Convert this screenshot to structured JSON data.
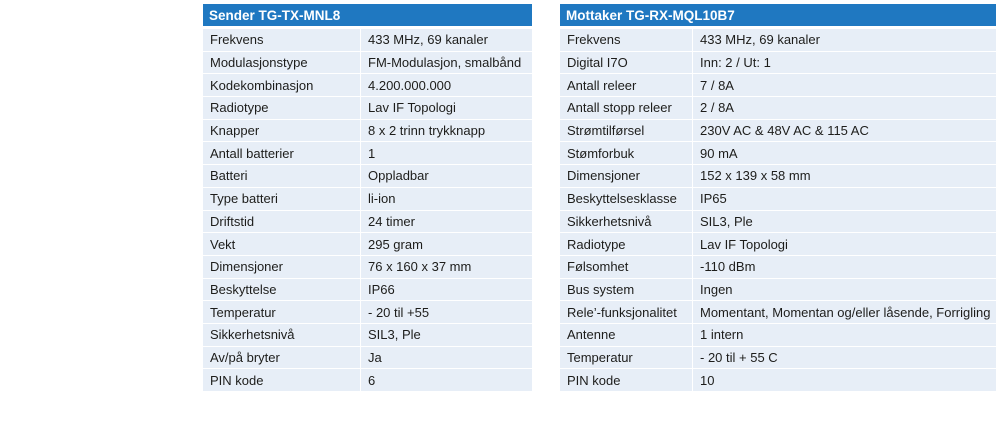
{
  "sender": {
    "title": "Sender TG-TX-MNL8",
    "rows": [
      {
        "label": "Frekvens",
        "value": "433 MHz, 69 kanaler"
      },
      {
        "label": "Modulasjonstype",
        "value": "FM-Modulasjon, smalbånd"
      },
      {
        "label": "Kodekombinasjon",
        "value": "4.200.000.000"
      },
      {
        "label": "Radiotype",
        "value": "Lav IF Topologi"
      },
      {
        "label": "Knapper",
        "value": "8 x 2 trinn trykknapp"
      },
      {
        "label": "Antall batterier",
        "value": "1"
      },
      {
        "label": "Batteri",
        "value": "Oppladbar"
      },
      {
        "label": "Type batteri",
        "value": "li-ion"
      },
      {
        "label": "Driftstid",
        "value": "24 timer"
      },
      {
        "label": "Vekt",
        "value": "295 gram"
      },
      {
        "label": "Dimensjoner",
        "value": "76 x 160 x 37 mm"
      },
      {
        "label": "Beskyttelse",
        "value": "IP66"
      },
      {
        "label": "Temperatur",
        "value": "- 20 til +55"
      },
      {
        "label": "Sikkerhetsnivå",
        "value": "SIL3, Ple"
      },
      {
        "label": "Av/på bryter",
        "value": "Ja"
      },
      {
        "label": "PIN kode",
        "value": "6"
      }
    ]
  },
  "mottaker": {
    "title": "Mottaker TG-RX-MQL10B7",
    "rows": [
      {
        "label": "Frekvens",
        "value": "433 MHz, 69 kanaler"
      },
      {
        "label": "Digital I7O",
        "value": "Inn: 2 / Ut: 1"
      },
      {
        "label": "Antall releer",
        "value": "7 / 8A"
      },
      {
        "label": "Antall stopp releer",
        "value": "2 / 8A"
      },
      {
        "label": "Strømtilførsel",
        "value": "230V AC & 48V AC & 115 AC"
      },
      {
        "label": "Stømforbuk",
        "value": "90 mA"
      },
      {
        "label": "Dimensjoner",
        "value": "152 x 139 x 58 mm"
      },
      {
        "label": "Beskyttelsesklasse",
        "value": "IP65"
      },
      {
        "label": "Sikkerhetsnivå",
        "value": "SIL3, Ple"
      },
      {
        "label": "Radiotype",
        "value": "Lav IF Topologi"
      },
      {
        "label": "Følsomhet",
        "value": "-110 dBm"
      },
      {
        "label": "Bus system",
        "value": "Ingen"
      },
      {
        "label": "Rele’-funksjonalitet",
        "value": "Momentant, Momentan og/eller låsende, Forrigling"
      },
      {
        "label": "Antenne",
        "value": "1 intern"
      },
      {
        "label": "Temperatur",
        "value": "- 20 til + 55 C"
      },
      {
        "label": "PIN kode",
        "value": "10"
      }
    ]
  }
}
